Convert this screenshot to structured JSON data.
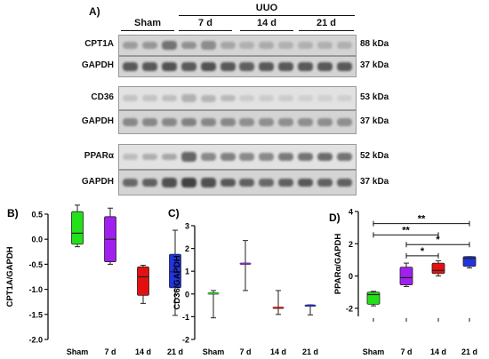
{
  "panel_a": {
    "label": "A)",
    "uuo_label": "UUO",
    "groups": [
      "Sham",
      "7 d",
      "14 d",
      "21 d"
    ],
    "blots": [
      {
        "name": "CPT1A",
        "kda": "88 kDa",
        "tone": "#6e6e6e",
        "style": "normal",
        "bands": [
          0.55,
          0.6,
          0.95,
          0.65,
          0.7,
          0.45,
          0.35,
          0.4,
          0.35,
          0.35,
          0.35,
          0.35
        ]
      },
      {
        "name": "GAPDH",
        "kda": "37 kDa",
        "tone": "#444444",
        "style": "normal",
        "bands": [
          0.85,
          0.85,
          0.9,
          0.85,
          0.9,
          0.85,
          0.8,
          0.85,
          0.85,
          0.85,
          0.85,
          0.85
        ]
      },
      {
        "name": "CD36",
        "kda": "53 kDa",
        "tone": "#8a8a8a",
        "style": "light",
        "bands": [
          0.35,
          0.35,
          0.4,
          0.55,
          0.5,
          0.45,
          0.25,
          0.25,
          0.25,
          0.2,
          0.2,
          0.2
        ]
      },
      {
        "name": "GAPDH",
        "kda": "37 kDa",
        "tone": "#555555",
        "style": "normal",
        "bands": [
          0.6,
          0.6,
          0.6,
          0.65,
          0.6,
          0.6,
          0.55,
          0.55,
          0.55,
          0.55,
          0.55,
          0.55
        ]
      },
      {
        "name": "PPARα",
        "kda": "52 kDa",
        "tone": "#505050",
        "style": "light",
        "bands": [
          0.25,
          0.35,
          0.4,
          0.85,
          0.6,
          0.65,
          0.6,
          0.6,
          0.7,
          0.75,
          0.8,
          0.75
        ]
      },
      {
        "name": "GAPDH",
        "kda": "37 kDa",
        "tone": "#3a3a3a",
        "style": "normal",
        "bands": [
          0.7,
          0.75,
          0.85,
          0.95,
          0.85,
          0.8,
          0.75,
          0.7,
          0.75,
          0.8,
          0.75,
          0.75
        ]
      }
    ]
  },
  "chart_data": [
    {
      "panel_label": "B)",
      "type": "box",
      "ylabel": "CPT1A/GAPDH",
      "categories": [
        "Sham",
        "7 d",
        "14 d",
        "21 d"
      ],
      "ylim": [
        -2.0,
        0.5
      ],
      "yticks": [
        "0.5",
        "0.0",
        "-0.5",
        "-1.0",
        "-1.5",
        "-2.0"
      ],
      "yticks_values": [
        0.5,
        0.0,
        -0.5,
        -1.0,
        -1.5,
        -2.0
      ],
      "colors": [
        "#22e01a",
        "#a020f0",
        "#e41010",
        "#2233e0"
      ],
      "boxes": [
        {
          "min": -0.15,
          "q1": -0.1,
          "median": 0.12,
          "q3": 0.55,
          "max": 0.68
        },
        {
          "min": -0.5,
          "q1": -0.45,
          "median": 0.0,
          "q3": 0.45,
          "max": 0.62
        },
        {
          "min": -1.28,
          "q1": -1.12,
          "median": -0.75,
          "q3": -0.55,
          "max": -0.52
        },
        {
          "min": -1.52,
          "q1": -0.97,
          "median": -0.65,
          "q3": -0.3,
          "max": 0.18
        }
      ],
      "significance": []
    },
    {
      "panel_label": "C)",
      "type": "box",
      "ylabel": "CD36/GAPDH",
      "categories": [
        "Sham",
        "7 d",
        "14 d",
        "21 d"
      ],
      "ylim": [
        -2,
        3
      ],
      "yticks": [
        "3",
        "2",
        "1",
        "0",
        "-1",
        "-2"
      ],
      "yticks_values": [
        3,
        2,
        1,
        0,
        -1,
        -2
      ],
      "colors": [
        "#22e01a",
        "#a020f0",
        "#e41010",
        "#2233e0"
      ],
      "boxes": [
        {
          "min": -1.05,
          "q1": 0.0,
          "median": 0.02,
          "q3": 0.05,
          "max": 0.15
        },
        {
          "min": 0.15,
          "q1": 1.3,
          "median": 1.33,
          "q3": 1.36,
          "max": 2.35
        },
        {
          "min": -0.9,
          "q1": -0.62,
          "median": -0.6,
          "q3": -0.58,
          "max": 0.15
        },
        {
          "min": -0.92,
          "q1": -0.52,
          "median": -0.5,
          "q3": -0.48,
          "max": -0.48
        }
      ],
      "significance": []
    },
    {
      "panel_label": "D)",
      "type": "box",
      "ylabel": "PPARα/GAPDH",
      "categories": [
        "Sham",
        "7 d",
        "14 d",
        "21 d"
      ],
      "ylim": [
        -2.5,
        4
      ],
      "yticks": [
        "4",
        "2",
        "0",
        "-2"
      ],
      "yticks_values": [
        4,
        2,
        0,
        -2
      ],
      "colors": [
        "#22e01a",
        "#a020f0",
        "#e41010",
        "#2233e0"
      ],
      "boxes": [
        {
          "min": -1.85,
          "q1": -1.75,
          "median": -1.15,
          "q3": -1.0,
          "max": -0.95
        },
        {
          "min": -0.65,
          "q1": -0.55,
          "median": -0.1,
          "q3": 0.55,
          "max": 0.8
        },
        {
          "min": 0.0,
          "q1": 0.15,
          "median": 0.35,
          "q3": 0.8,
          "max": 0.95
        },
        {
          "min": 0.5,
          "q1": 0.6,
          "median": 1.1,
          "q3": 1.2,
          "max": 1.2
        }
      ],
      "significance": [
        {
          "from": 0,
          "to": 3,
          "y": 3.25,
          "label": "**"
        },
        {
          "from": 0,
          "to": 2,
          "y": 2.55,
          "label": "**"
        },
        {
          "from": 1,
          "to": 3,
          "y": 1.95,
          "label": "*"
        },
        {
          "from": 1,
          "to": 2,
          "y": 1.25,
          "label": "*"
        }
      ]
    }
  ]
}
